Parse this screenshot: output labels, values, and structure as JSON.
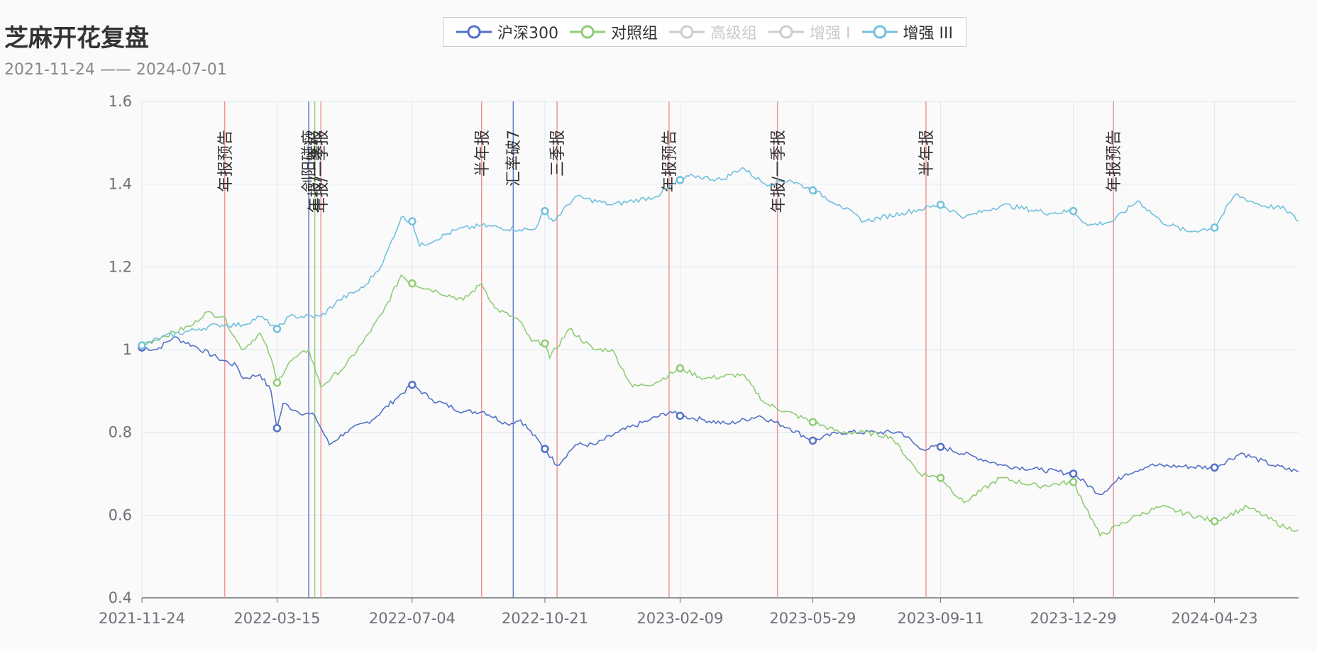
{
  "chart_data": {
    "type": "line",
    "title": "芝麻开花复盘",
    "subtitle": "2021-11-24 —— 2024-07-01",
    "x_ticks": [
      "2021-11-24",
      "2022-03-15",
      "2022-07-04",
      "2022-10-21",
      "2023-02-09",
      "2023-05-29",
      "2023-09-11",
      "2023-12-29",
      "2024-04-23"
    ],
    "x_range": [
      "2021-11-24",
      "2024-07-01"
    ],
    "ylim": [
      0.4,
      1.6
    ],
    "y_ticks": [
      0.4,
      0.6,
      0.8,
      1,
      1.2,
      1.4,
      1.6
    ],
    "grid": true,
    "legend": [
      {
        "name": "沪深300",
        "color": "#5470c6",
        "active": true
      },
      {
        "name": "对照组",
        "color": "#91cc75",
        "active": true
      },
      {
        "name": "高级组",
        "color": "#cccccc",
        "active": false
      },
      {
        "name": "增强 I",
        "color": "#cccccc",
        "active": false
      },
      {
        "name": "增强 III",
        "color": "#73c0de",
        "active": true
      }
    ],
    "series": [
      {
        "name": "沪深300",
        "color": "#5470c6",
        "points": [
          [
            "2021-11-24",
            1.005
          ],
          [
            "2021-12-06",
            1.0
          ],
          [
            "2021-12-20",
            1.03
          ],
          [
            "2022-01-05",
            1.01
          ],
          [
            "2022-01-25",
            0.98
          ],
          [
            "2022-02-10",
            0.96
          ],
          [
            "2022-02-15",
            0.93
          ],
          [
            "2022-03-01",
            0.94
          ],
          [
            "2022-03-10",
            0.9
          ],
          [
            "2022-03-15",
            0.81
          ],
          [
            "2022-03-20",
            0.87
          ],
          [
            "2022-04-01",
            0.85
          ],
          [
            "2022-04-15",
            0.84
          ],
          [
            "2022-04-27",
            0.77
          ],
          [
            "2022-05-10",
            0.8
          ],
          [
            "2022-06-01",
            0.83
          ],
          [
            "2022-06-20",
            0.88
          ],
          [
            "2022-07-04",
            0.915
          ],
          [
            "2022-07-20",
            0.88
          ],
          [
            "2022-08-15",
            0.85
          ],
          [
            "2022-09-01",
            0.85
          ],
          [
            "2022-09-20",
            0.82
          ],
          [
            "2022-10-01",
            0.83
          ],
          [
            "2022-10-21",
            0.76
          ],
          [
            "2022-10-31",
            0.72
          ],
          [
            "2022-11-15",
            0.77
          ],
          [
            "2022-12-01",
            0.77
          ],
          [
            "2022-12-20",
            0.8
          ],
          [
            "2023-01-15",
            0.83
          ],
          [
            "2023-02-01",
            0.85
          ],
          [
            "2023-02-09",
            0.84
          ],
          [
            "2023-03-01",
            0.83
          ],
          [
            "2023-03-20",
            0.82
          ],
          [
            "2023-04-15",
            0.84
          ],
          [
            "2023-05-10",
            0.81
          ],
          [
            "2023-05-29",
            0.78
          ],
          [
            "2023-06-20",
            0.8
          ],
          [
            "2023-07-20",
            0.8
          ],
          [
            "2023-08-10",
            0.8
          ],
          [
            "2023-08-25",
            0.76
          ],
          [
            "2023-09-11",
            0.765
          ],
          [
            "2023-10-10",
            0.74
          ],
          [
            "2023-11-01",
            0.72
          ],
          [
            "2023-12-01",
            0.71
          ],
          [
            "2023-12-29",
            0.7
          ],
          [
            "2024-01-20",
            0.65
          ],
          [
            "2024-02-10",
            0.7
          ],
          [
            "2024-03-01",
            0.72
          ],
          [
            "2024-04-23",
            0.715
          ],
          [
            "2024-05-15",
            0.75
          ],
          [
            "2024-06-10",
            0.72
          ],
          [
            "2024-07-01",
            0.705
          ]
        ]
      },
      {
        "name": "对照组",
        "color": "#91cc75",
        "points": [
          [
            "2021-11-24",
            1.01
          ],
          [
            "2021-12-10",
            1.03
          ],
          [
            "2022-01-05",
            1.06
          ],
          [
            "2022-01-15",
            1.09
          ],
          [
            "2022-01-30",
            1.08
          ],
          [
            "2022-02-10",
            1.02
          ],
          [
            "2022-02-15",
            1.0
          ],
          [
            "2022-03-01",
            1.04
          ],
          [
            "2022-03-10",
            0.98
          ],
          [
            "2022-03-15",
            0.92
          ],
          [
            "2022-03-25",
            0.97
          ],
          [
            "2022-04-10",
            1.0
          ],
          [
            "2022-04-20",
            0.91
          ],
          [
            "2022-05-10",
            0.96
          ],
          [
            "2022-05-25",
            1.02
          ],
          [
            "2022-06-10",
            1.09
          ],
          [
            "2022-06-25",
            1.18
          ],
          [
            "2022-07-04",
            1.16
          ],
          [
            "2022-07-25",
            1.14
          ],
          [
            "2022-08-15",
            1.12
          ],
          [
            "2022-08-30",
            1.16
          ],
          [
            "2022-09-10",
            1.1
          ],
          [
            "2022-09-30",
            1.07
          ],
          [
            "2022-10-10",
            1.02
          ],
          [
            "2022-10-21",
            1.015
          ],
          [
            "2022-10-25",
            0.98
          ],
          [
            "2022-11-10",
            1.05
          ],
          [
            "2022-11-30",
            1.0
          ],
          [
            "2022-12-15",
            1.0
          ],
          [
            "2023-01-01",
            0.91
          ],
          [
            "2023-01-20",
            0.92
          ],
          [
            "2023-02-09",
            0.955
          ],
          [
            "2023-03-01",
            0.93
          ],
          [
            "2023-04-01",
            0.94
          ],
          [
            "2023-04-20",
            0.87
          ],
          [
            "2023-05-29",
            0.825
          ],
          [
            "2023-06-20",
            0.8
          ],
          [
            "2023-07-10",
            0.8
          ],
          [
            "2023-08-01",
            0.79
          ],
          [
            "2023-08-25",
            0.7
          ],
          [
            "2023-09-11",
            0.69
          ],
          [
            "2023-09-30",
            0.63
          ],
          [
            "2023-10-30",
            0.69
          ],
          [
            "2023-11-30",
            0.67
          ],
          [
            "2023-12-29",
            0.68
          ],
          [
            "2024-01-20",
            0.55
          ],
          [
            "2024-02-20",
            0.6
          ],
          [
            "2024-03-10",
            0.62
          ],
          [
            "2024-04-23",
            0.585
          ],
          [
            "2024-05-20",
            0.62
          ],
          [
            "2024-06-20",
            0.57
          ],
          [
            "2024-07-01",
            0.565
          ]
        ]
      },
      {
        "name": "增强 III",
        "color": "#73c0de",
        "points": [
          [
            "2021-11-24",
            1.01
          ],
          [
            "2021-12-10",
            1.03
          ],
          [
            "2022-01-10",
            1.05
          ],
          [
            "2022-01-25",
            1.06
          ],
          [
            "2022-02-15",
            1.06
          ],
          [
            "2022-03-01",
            1.08
          ],
          [
            "2022-03-15",
            1.05
          ],
          [
            "2022-03-25",
            1.08
          ],
          [
            "2022-04-20",
            1.08
          ],
          [
            "2022-05-05",
            1.12
          ],
          [
            "2022-05-25",
            1.15
          ],
          [
            "2022-06-10",
            1.21
          ],
          [
            "2022-06-25",
            1.32
          ],
          [
            "2022-07-04",
            1.31
          ],
          [
            "2022-07-10",
            1.25
          ],
          [
            "2022-08-10",
            1.29
          ],
          [
            "2022-08-30",
            1.3
          ],
          [
            "2022-09-30",
            1.29
          ],
          [
            "2022-10-12",
            1.29
          ],
          [
            "2022-10-21",
            1.335
          ],
          [
            "2022-10-28",
            1.31
          ],
          [
            "2022-11-15",
            1.37
          ],
          [
            "2022-12-15",
            1.35
          ],
          [
            "2023-01-20",
            1.37
          ],
          [
            "2023-02-09",
            1.41
          ],
          [
            "2023-02-20",
            1.42
          ],
          [
            "2023-03-15",
            1.41
          ],
          [
            "2023-04-01",
            1.44
          ],
          [
            "2023-04-20",
            1.4
          ],
          [
            "2023-05-10",
            1.41
          ],
          [
            "2023-05-29",
            1.385
          ],
          [
            "2023-06-20",
            1.35
          ],
          [
            "2023-07-10",
            1.31
          ],
          [
            "2023-08-10",
            1.33
          ],
          [
            "2023-09-11",
            1.35
          ],
          [
            "2023-10-01",
            1.32
          ],
          [
            "2023-11-01",
            1.35
          ],
          [
            "2023-12-10",
            1.33
          ],
          [
            "2023-12-29",
            1.335
          ],
          [
            "2024-01-10",
            1.3
          ],
          [
            "2024-01-30",
            1.31
          ],
          [
            "2024-02-20",
            1.36
          ],
          [
            "2024-03-10",
            1.31
          ],
          [
            "2024-04-01",
            1.285
          ],
          [
            "2024-04-23",
            1.295
          ],
          [
            "2024-05-10",
            1.375
          ],
          [
            "2024-05-30",
            1.35
          ],
          [
            "2024-06-20",
            1.34
          ],
          [
            "2024-07-01",
            1.31
          ]
        ]
      }
    ],
    "markers": {
      "沪深300": [
        "2021-11-24",
        "2022-03-15",
        "2022-07-04",
        "2022-10-21",
        "2023-02-09",
        "2023-05-29",
        "2023-09-11",
        "2023-12-29",
        "2024-04-23"
      ],
      "对照组": [
        "2021-11-24",
        "2022-03-15",
        "2022-07-04",
        "2022-10-21",
        "2023-02-09",
        "2023-05-29",
        "2023-09-11",
        "2023-12-29",
        "2024-04-23"
      ],
      "增强 III": [
        "2021-11-24",
        "2022-03-15",
        "2022-07-04",
        "2022-10-21",
        "2023-02-09",
        "2023-05-29",
        "2023-09-11",
        "2023-12-29",
        "2024-04-23"
      ]
    },
    "annotations": [
      {
        "date": "2022-01-31",
        "label": "年报预告",
        "color": "#f28b8b"
      },
      {
        "date": "2022-04-10",
        "label": "剑阳碰痧",
        "color": "#5470c6"
      },
      {
        "date": "2022-04-15",
        "label": "年报/一季报",
        "color": "#91cc75"
      },
      {
        "date": "2022-04-20",
        "label": "年报/一季报",
        "color": "#f28b8b"
      },
      {
        "date": "2022-08-30",
        "label": "半年报",
        "color": "#f28b8b"
      },
      {
        "date": "2022-09-25",
        "label": "汇率破7",
        "color": "#5470c6"
      },
      {
        "date": "2022-10-31",
        "label": "三季报",
        "color": "#f28b8b"
      },
      {
        "date": "2023-01-31",
        "label": "年报预告",
        "color": "#f28b8b"
      },
      {
        "date": "2023-04-30",
        "label": "年报/一季报",
        "color": "#f28b8b"
      },
      {
        "date": "2023-08-30",
        "label": "半年报",
        "color": "#f28b8b"
      },
      {
        "date": "2024-01-31",
        "label": "年报预告",
        "color": "#f28b8b"
      }
    ]
  }
}
